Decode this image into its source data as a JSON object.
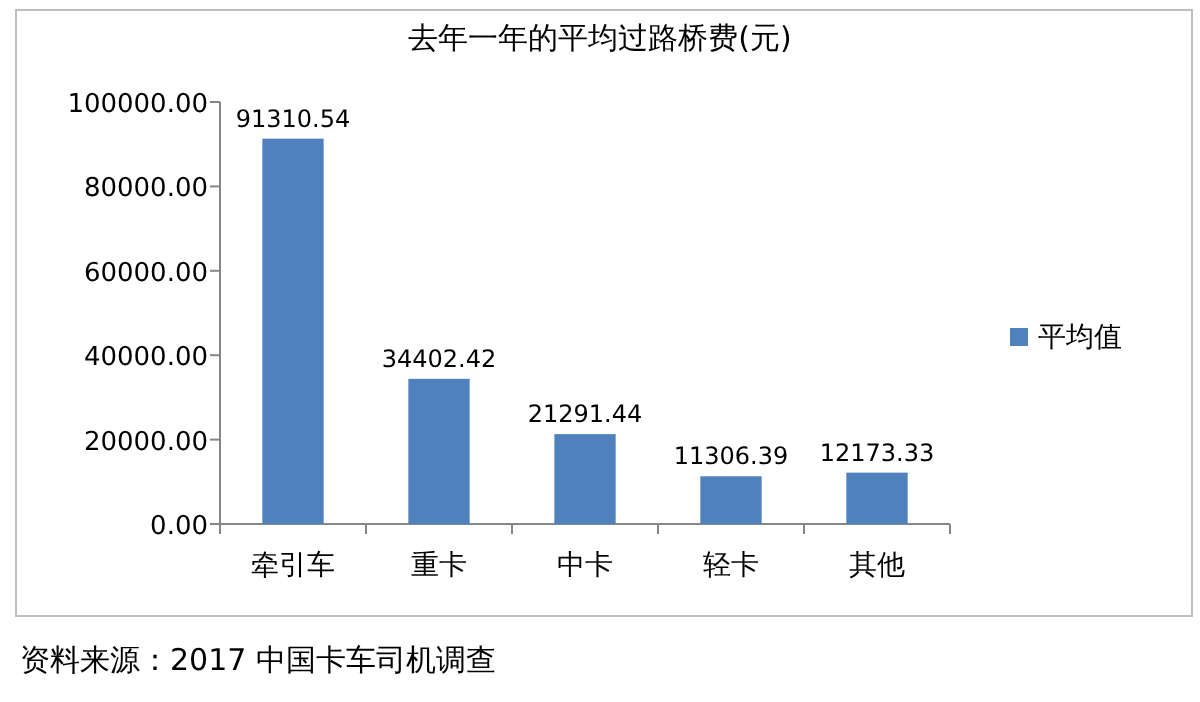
{
  "chart_data": {
    "type": "bar",
    "title": "去年一年的平均过路桥费(元)",
    "categories": [
      "牵引车",
      "重卡",
      "中卡",
      "轻卡",
      "其他"
    ],
    "series": [
      {
        "name": "平均值",
        "color": "#4f81bd",
        "values": [
          91310.54,
          34402.42,
          21291.44,
          11306.39,
          12173.33
        ]
      }
    ],
    "ylim": [
      0,
      100000
    ],
    "yticks": [
      {
        "value": 0,
        "label": "0.00"
      },
      {
        "value": 20000,
        "label": "20000.00"
      },
      {
        "value": 40000,
        "label": "40000.00"
      },
      {
        "value": 60000,
        "label": "60000.00"
      },
      {
        "value": 80000,
        "label": "80000.00"
      },
      {
        "value": 100000,
        "label": "100000.00"
      }
    ],
    "data_labels": true,
    "grid": false,
    "legend": "right",
    "annotations": [
      "资料来源：2017  中国卡车司机调查"
    ]
  }
}
